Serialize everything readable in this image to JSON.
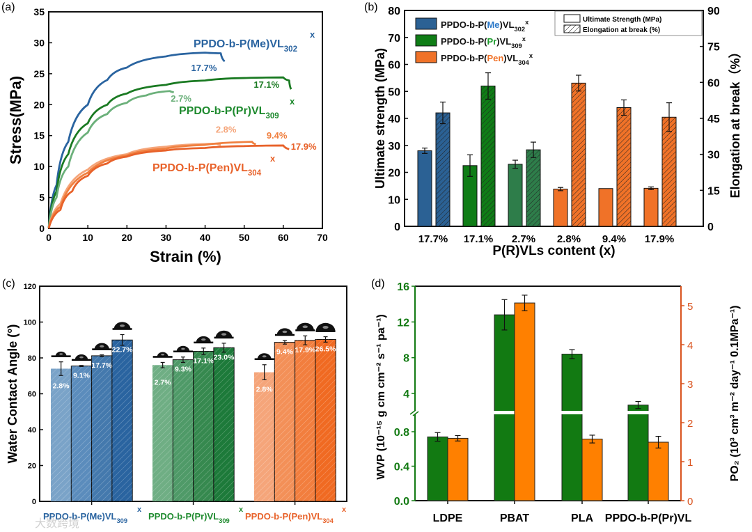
{
  "watermark": "大数跨境",
  "chart_data": [
    {
      "panel": "(a)",
      "type": "line",
      "xlabel": "Strain (%)",
      "ylabel": "Stress(MPa)",
      "xlim": [
        0,
        70
      ],
      "ylim": [
        0,
        35
      ],
      "xticks": [
        "0",
        "10",
        "20",
        "30",
        "40",
        "50",
        "60",
        "70"
      ],
      "yticks": [
        "0",
        "5",
        "10",
        "15",
        "20",
        "25",
        "30",
        "35"
      ],
      "group_labels": [
        {
          "base": "PPDO-b-P(Me)VL",
          "sub": "302",
          "sup": "x",
          "color": "#2a64a0"
        },
        {
          "base": "PPDO-b-P(Pr)VL",
          "sub": "309",
          "sup": "x",
          "color": "#1e8a2e"
        },
        {
          "base": "PPDO-b-P(Pen)VL",
          "sub": "304",
          "sup": "x",
          "color": "#e8622a"
        }
      ],
      "series": [
        {
          "name": "17.7%",
          "color": "#2a64a0",
          "x": [
            0,
            2,
            5,
            10,
            15,
            20,
            30,
            40,
            44,
            45
          ],
          "y": [
            0,
            7,
            14,
            20,
            24,
            26,
            27.8,
            28.4,
            28.3,
            27
          ]
        },
        {
          "name": "17.1%",
          "color": "#1a7a22",
          "x": [
            0,
            2,
            5,
            10,
            15,
            20,
            30,
            40,
            50,
            60,
            61.5,
            62
          ],
          "y": [
            0,
            6,
            12,
            17,
            20,
            21.8,
            23.2,
            23.9,
            24.3,
            24.4,
            23.9,
            22.5
          ]
        },
        {
          "name": "2.7%",
          "color": "#6bb07a",
          "x": [
            0,
            2,
            5,
            10,
            15,
            20,
            25,
            31,
            32
          ],
          "y": [
            0,
            5,
            10,
            15.5,
            18.5,
            20.3,
            21.5,
            22.2,
            22
          ]
        },
        {
          "name": "2.8%",
          "color": "#f5a57a",
          "x": [
            0,
            3,
            10,
            20,
            30,
            43,
            44
          ],
          "y": [
            0,
            4,
            9.5,
            12,
            13.2,
            13.7,
            13.5
          ]
        },
        {
          "name": "9.4%",
          "color": "#f08040",
          "x": [
            0,
            3,
            10,
            20,
            30,
            40,
            52,
            53
          ],
          "y": [
            0,
            3.5,
            9,
            11.8,
            12.9,
            13.5,
            14,
            13.6
          ]
        },
        {
          "name": "17.9%",
          "color": "#e8622a",
          "x": [
            0,
            3,
            6,
            10,
            15,
            20,
            30,
            40,
            50,
            60,
            61.5
          ],
          "y": [
            0,
            3,
            6,
            8.5,
            10.5,
            11.6,
            12.6,
            13,
            13.3,
            13.4,
            12.8
          ]
        }
      ]
    },
    {
      "panel": "(b)",
      "type": "bar",
      "xlabel": "P(R)VLs content (x)",
      "ylabel": "Ultimate strength (MPa)",
      "ylabel_right": "Elongation at break（%）",
      "ylim": [
        0,
        80
      ],
      "ylim_right": [
        0,
        90
      ],
      "yticks": [
        "0",
        "10",
        "20",
        "30",
        "40",
        "50",
        "60",
        "70",
        "80"
      ],
      "yticks_right": [
        "0",
        "15",
        "30",
        "45",
        "60",
        "75",
        "90"
      ],
      "categories": [
        "17.7%",
        "17.1%",
        "2.7%",
        "2.8%",
        "9.4%",
        "17.9%"
      ],
      "colors": [
        "#2b6194",
        "#0f7d16",
        "#2e7d4a",
        "#f07228",
        "#f07228",
        "#f07228"
      ],
      "series": [
        {
          "name": "Ultimate Strength (MPa)",
          "values": [
            28,
            22.5,
            23,
            13.8,
            14,
            14.1
          ],
          "errors": [
            1,
            4,
            1.5,
            0.6,
            0,
            0.5
          ]
        },
        {
          "name": "Elongation at break (%)",
          "values": [
            47.3,
            58.5,
            31.9,
            59.7,
            49.5,
            45.5
          ],
          "errors": [
            4.5,
            5.5,
            3.2,
            3.3,
            3.2,
            6
          ]
        }
      ],
      "legend_groups": [
        {
          "base": "PPDO-b-P(",
          "mid": "Me",
          "end": ")VL",
          "sub": "302",
          "sup": "x",
          "color": "#2b6194",
          "mid_color": "#2b78c8"
        },
        {
          "base": "PPDO-b-P(",
          "mid": "Pr",
          "end": ")VL",
          "sub": "309",
          "sup": "x",
          "color": "#0f7d16",
          "mid_color": "#1a9a2a"
        },
        {
          "base": "PPDO-b-P(",
          "mid": "Pen",
          "end": ")VL",
          "sub": "304",
          "sup": "x",
          "color": "#f07228",
          "mid_color": "#f07228"
        }
      ],
      "legend_placement": "top"
    },
    {
      "panel": "(c)",
      "type": "bar",
      "ylabel": "Water Contact Angle (°)",
      "ylim": [
        0,
        120
      ],
      "yticks": [
        "0",
        "20",
        "40",
        "60",
        "80",
        "100",
        "120"
      ],
      "groups": [
        {
          "base": "PPDO-b-P(Me)VL",
          "sub": "309",
          "sup": "x",
          "color": "#2a64a0",
          "bar_colors": [
            "#7aa3c8",
            "#5b8cbc",
            "#4479ad",
            "#2a64a0"
          ],
          "labels": [
            "2.8%",
            "9.1%",
            "17.7%",
            "22.7%"
          ],
          "values": [
            74,
            75.5,
            81.2,
            90
          ],
          "errors": [
            3.8,
            0.3,
            0.5,
            3
          ]
        },
        {
          "base": "PPDO-b-P(Pr)VL",
          "sub": "309",
          "sup": "x",
          "color": "#1e8a2e",
          "bar_colors": [
            "#6fae84",
            "#4f9a68",
            "#36894f",
            "#1d7a3a"
          ],
          "labels": [
            "2.7%",
            "9.3%",
            "17.1%",
            "23.0%"
          ],
          "values": [
            76,
            79,
            83.7,
            85.7
          ],
          "errors": [
            1.5,
            1.5,
            1.8,
            2.5
          ]
        },
        {
          "base": "PPDO-b-P(Pen)VL",
          "sub": "304",
          "sup": "x",
          "color": "#e8622a",
          "bar_colors": [
            "#f5a57a",
            "#f39058",
            "#f27e3e",
            "#f06a22"
          ],
          "labels": [
            "2.8%",
            "9.4%",
            "17.9%",
            "26.5%"
          ],
          "values": [
            72,
            88.7,
            89.8,
            90.3
          ],
          "errors": [
            4.2,
            1,
            2.5,
            1.5
          ]
        }
      ]
    },
    {
      "panel": "(d)",
      "type": "bar",
      "ylabel": "WVP (10⁻¹⁵ g cm cm⁻² s⁻¹ pa⁻¹)",
      "ylabel_right": "PO₂ (10³ cm³ m⁻² day⁻¹ 0.1MPa⁻¹)",
      "yticks_lower": [
        "0.0",
        "0.4",
        "0.8"
      ],
      "yticks_upper": [
        "4",
        "8",
        "12",
        "16"
      ],
      "ylim_right": [
        0,
        5.5
      ],
      "yticks_right": [
        "0",
        "1",
        "2",
        "3",
        "4",
        "5"
      ],
      "categories": [
        "LDPE",
        "PBAT",
        "PLA",
        "PPDO-b-P(Pr)VL"
      ],
      "series": [
        {
          "name": "WVP",
          "color": "#127a12",
          "values": [
            0.74,
            12.8,
            8.4,
            2.7
          ],
          "errors": [
            0.05,
            1.7,
            0.5,
            0.4
          ]
        },
        {
          "name": "PO2",
          "color": "#ff8000",
          "values": [
            1.6,
            5.07,
            1.58,
            1.5
          ],
          "errors": [
            0.07,
            0.2,
            0.1,
            0.15
          ]
        }
      ],
      "left_axis_color": "#127a12",
      "right_axis_color": "#d9531e"
    }
  ]
}
